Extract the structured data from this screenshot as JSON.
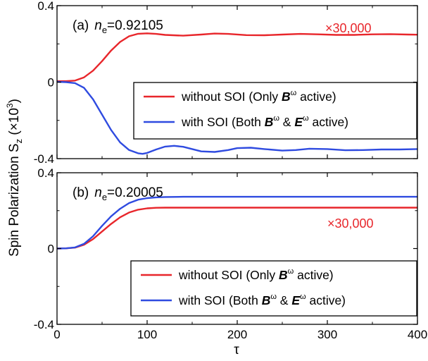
{
  "figure": {
    "ylabel": "Spin Polarization S",
    "ylabel_sub": "z",
    "ylabel_unit": " (×10",
    "ylabel_exp": "3",
    "ylabel_close": ")",
    "xlabel": "τ"
  },
  "colors": {
    "without_soi": "#e8262b",
    "with_soi": "#2f4be0",
    "axis": "#000000"
  },
  "chart_data": [
    {
      "type": "line",
      "panel_label": "(a)",
      "ne_symbol": "n",
      "ne_sub": "e",
      "ne_value": "=0.92105",
      "scale_note": "×30,000",
      "xlim": [
        0,
        400
      ],
      "ylim": [
        -0.4,
        0.4
      ],
      "x_ticks": [
        0,
        100,
        200,
        300,
        400
      ],
      "y_ticks": [
        -0.4,
        0,
        0.4
      ],
      "y_tick_labels": [
        "-0.4",
        "0",
        "0.4"
      ],
      "legend_position": "right",
      "series": [
        {
          "name": "without SOI (Only B^ω active)",
          "legend_prefix": "without SOI (Only ",
          "legend_sym1": "B",
          "legend_sup1": "ω",
          "legend_suffix": " active)",
          "color": "#e8262b",
          "x": [
            0,
            10,
            20,
            30,
            40,
            50,
            60,
            70,
            80,
            90,
            100,
            110,
            120,
            140,
            160,
            175,
            190,
            210,
            230,
            250,
            270,
            290,
            310,
            330,
            350,
            370,
            390,
            400
          ],
          "y": [
            0.005,
            0.005,
            0.008,
            0.025,
            0.06,
            0.11,
            0.165,
            0.21,
            0.24,
            0.253,
            0.255,
            0.252,
            0.247,
            0.243,
            0.249,
            0.254,
            0.252,
            0.246,
            0.245,
            0.249,
            0.252,
            0.25,
            0.247,
            0.247,
            0.25,
            0.251,
            0.249,
            0.248
          ]
        },
        {
          "name": "with SOI (Both B^ω & E^ω active)",
          "legend_prefix": "with SOI (Both ",
          "legend_sym1": "B",
          "legend_sup1": "ω",
          "legend_mid": " & ",
          "legend_sym2": "E",
          "legend_sup2": "ω",
          "legend_suffix": " active)",
          "color": "#2f4be0",
          "x": [
            0,
            10,
            20,
            30,
            40,
            50,
            60,
            70,
            80,
            90,
            95,
            100,
            110,
            120,
            130,
            140,
            150,
            160,
            175,
            190,
            200,
            215,
            230,
            250,
            265,
            280,
            300,
            320,
            340,
            360,
            380,
            400
          ],
          "y": [
            0.002,
            0.0,
            -0.005,
            -0.03,
            -0.09,
            -0.17,
            -0.25,
            -0.315,
            -0.355,
            -0.372,
            -0.375,
            -0.37,
            -0.352,
            -0.337,
            -0.333,
            -0.338,
            -0.35,
            -0.362,
            -0.365,
            -0.355,
            -0.345,
            -0.343,
            -0.35,
            -0.358,
            -0.355,
            -0.348,
            -0.35,
            -0.356,
            -0.355,
            -0.352,
            -0.352,
            -0.35
          ]
        }
      ]
    },
    {
      "type": "line",
      "panel_label": "(b)",
      "ne_symbol": "n",
      "ne_sub": "e",
      "ne_value": "=0.20005",
      "scale_note": "×30,000",
      "xlim": [
        0,
        400
      ],
      "ylim": [
        -0.4,
        0.4
      ],
      "x_ticks": [
        0,
        100,
        200,
        300,
        400
      ],
      "x_tick_labels": [
        "0",
        "100",
        "200",
        "300",
        "400"
      ],
      "y_ticks": [
        -0.4,
        0,
        0.4
      ],
      "y_tick_labels": [
        "-0.4",
        "0",
        "0.4"
      ],
      "legend_position": "bottom-right",
      "series": [
        {
          "name": "without SOI (Only B^ω active)",
          "legend_prefix": "without SOI (Only ",
          "legend_sym1": "B",
          "legend_sup1": "ω",
          "legend_suffix": " active)",
          "color": "#e8262b",
          "x": [
            0,
            10,
            20,
            30,
            40,
            50,
            60,
            70,
            80,
            90,
            100,
            110,
            120,
            140,
            160,
            200,
            250,
            300,
            350,
            400
          ],
          "y": [
            0.0,
            0.001,
            0.005,
            0.02,
            0.05,
            0.09,
            0.13,
            0.165,
            0.19,
            0.205,
            0.212,
            0.215,
            0.216,
            0.216,
            0.216,
            0.216,
            0.216,
            0.216,
            0.216,
            0.216
          ]
        },
        {
          "name": "with SOI (Both B^ω & E^ω active)",
          "legend_prefix": "with SOI (Both ",
          "legend_sym1": "B",
          "legend_sup1": "ω",
          "legend_mid": " & ",
          "legend_sym2": "E",
          "legend_sup2": "ω",
          "legend_suffix": " active)",
          "color": "#2f4be0",
          "x": [
            0,
            10,
            20,
            30,
            40,
            50,
            60,
            70,
            80,
            90,
            100,
            110,
            120,
            140,
            160,
            200,
            250,
            300,
            350,
            400
          ],
          "y": [
            0.0,
            0.001,
            0.006,
            0.025,
            0.065,
            0.12,
            0.17,
            0.21,
            0.24,
            0.258,
            0.266,
            0.27,
            0.272,
            0.273,
            0.273,
            0.273,
            0.273,
            0.273,
            0.273,
            0.273
          ]
        }
      ]
    }
  ]
}
